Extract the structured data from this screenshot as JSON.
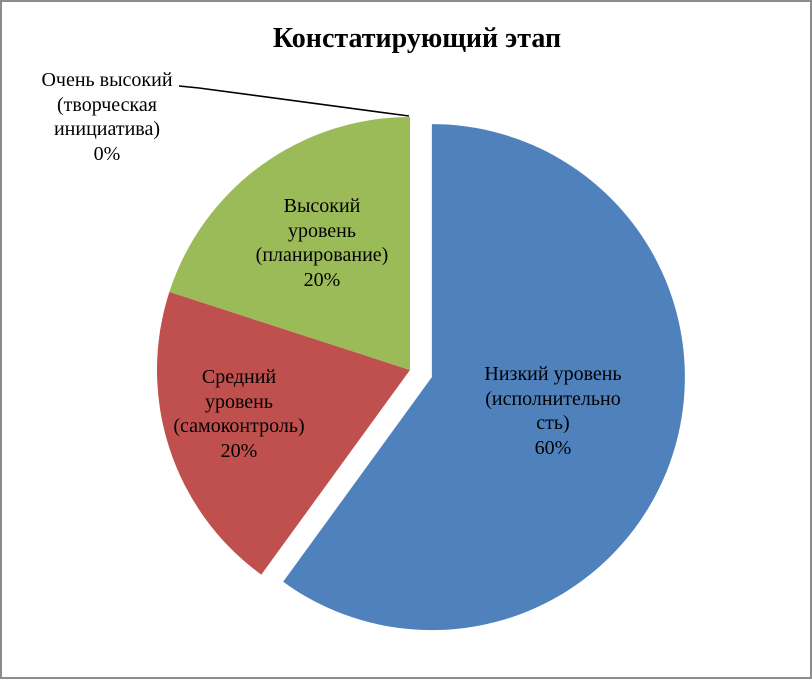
{
  "title": "Констатирующий этап",
  "frame": {
    "background": "#FFFFFF",
    "border_color": "#8C8C8C"
  },
  "chart_data": {
    "type": "pie",
    "title": "Констатирующий этап",
    "categories": [
      "Низкий уровень (исполнительность)",
      "Средний уровень (самоконтроль)",
      "Высокий уровень (планирование)",
      "Очень высокий (творческая инициатива)"
    ],
    "values": [
      60,
      20,
      20,
      0
    ],
    "unit": "%",
    "start_angle_deg": 0,
    "direction": "clockwise",
    "legend": "none",
    "exploded_slice_index": 0,
    "slices": [
      {
        "name": "Низкий уровень (исполнительность)",
        "value_pct": 60,
        "color": "#4F81BD",
        "exploded": true,
        "label_lines": "Низкий уровень\n(исполнительно\nсть)\n60%"
      },
      {
        "name": "Средний уровень (самоконтроль)",
        "value_pct": 20,
        "color": "#C0504D",
        "exploded": false,
        "label_lines": "Средний\nуровень\n(самоконтроль)\n20%"
      },
      {
        "name": "Высокий уровень (планирование)",
        "value_pct": 20,
        "color": "#9BBB59",
        "exploded": false,
        "label_lines": "Высокий\nуровень\n(планирование)\n20%"
      },
      {
        "name": "Очень высокий (творческая инициатива)",
        "value_pct": 0,
        "color": "#8064A2",
        "exploded": false,
        "has_leader_line": true,
        "label_lines": "Очень высокий\n(творческая\nинициатива)\n0%"
      }
    ]
  }
}
